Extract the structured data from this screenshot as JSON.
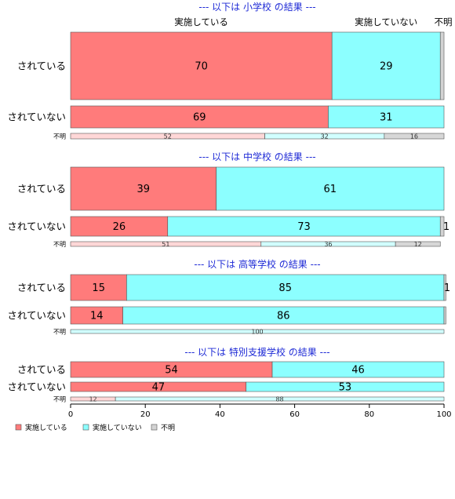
{
  "chart_data": {
    "type": "bar",
    "orientation": "horizontal",
    "stacked": true,
    "xlim": [
      0,
      100
    ],
    "xticks": [
      0,
      20,
      40,
      60,
      80,
      100
    ],
    "column_labels": [
      "実施している",
      "実施していない",
      "不明"
    ],
    "colors": [
      "#ff7b7b",
      "#8cffff",
      "#d3d3d3"
    ],
    "panels": [
      {
        "title": "--- 以下は 小学校 の結果 ---",
        "rows": [
          {
            "label": "されている",
            "values": [
              70,
              29,
              1
            ],
            "labels": [
              "70",
              "29",
              ""
            ]
          },
          {
            "label": "されていない",
            "values": [
              69,
              31,
              0
            ],
            "labels": [
              "69",
              "31",
              ""
            ]
          },
          {
            "label": "不明",
            "values": [
              52,
              32,
              16
            ],
            "labels": [
              "52",
              "32",
              "16"
            ]
          }
        ]
      },
      {
        "title": "--- 以下は 中学校 の結果 ---",
        "rows": [
          {
            "label": "されている",
            "values": [
              39,
              61,
              0
            ],
            "labels": [
              "39",
              "61",
              ""
            ]
          },
          {
            "label": "されていない",
            "values": [
              26,
              73,
              1
            ],
            "labels": [
              "26",
              "73",
              "1"
            ]
          },
          {
            "label": "不明",
            "values": [
              51,
              36,
              12
            ],
            "labels": [
              "51",
              "36",
              "12"
            ]
          }
        ]
      },
      {
        "title": "--- 以下は 高等学校 の結果 ---",
        "rows": [
          {
            "label": "されている",
            "values": [
              15,
              85,
              0.5
            ],
            "labels": [
              "15",
              "85",
              "1"
            ]
          },
          {
            "label": "されていない",
            "values": [
              14,
              86,
              0.5
            ],
            "labels": [
              "14",
              "86",
              ""
            ]
          },
          {
            "label": "不明",
            "values": [
              0,
              100,
              0
            ],
            "labels": [
              "",
              "100",
              ""
            ]
          }
        ]
      },
      {
        "title": "--- 以下は 特別支援学校 の結果 ---",
        "rows": [
          {
            "label": "されている",
            "values": [
              54,
              46,
              0
            ],
            "labels": [
              "54",
              "46",
              ""
            ]
          },
          {
            "label": "されていない",
            "values": [
              47,
              53,
              0
            ],
            "labels": [
              "47",
              "53",
              ""
            ]
          },
          {
            "label": "不明",
            "values": [
              12,
              88,
              0
            ],
            "labels": [
              "12",
              "88",
              ""
            ]
          }
        ]
      }
    ],
    "legend": {
      "position": "bottom-left",
      "entries": [
        "実施している",
        "実施していない",
        "不明"
      ]
    }
  }
}
